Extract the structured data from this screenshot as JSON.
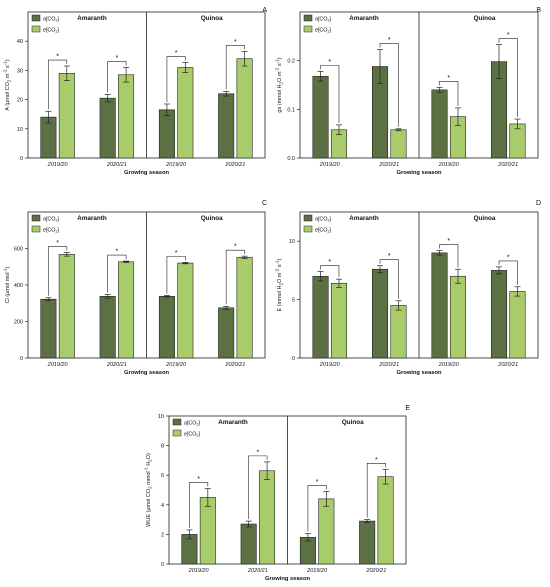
{
  "colors": {
    "ambient": "#5b7043",
    "elevated": "#a9cc6a",
    "axis": "#222222"
  },
  "legend": {
    "ambient_prefix": "a",
    "elevated_prefix": "e",
    "gas": "[CO",
    "gas_sub": "2",
    "gas_end": "]"
  },
  "xlabel": "Growing season",
  "categories": [
    "2019/20",
    "2020/21",
    "2019/20",
    "2020/21"
  ],
  "crops": [
    "Amaranth",
    "Quinoa"
  ],
  "chart_data": [
    {
      "type": "bar",
      "panel": "A",
      "ylabel_html": "A (μmol CO<tspan font-size='4.5' dy='1.5'>2</tspan><tspan dy='-1.5'> m</tspan><tspan font-size='4.5' dy='-2.5'>-2</tspan><tspan dy='2.5'> s</tspan><tspan font-size='4.5' dy='-2.5'>-1</tspan><tspan dy='2.5'>)</tspan>",
      "ylim": [
        0,
        50
      ],
      "ticks": [
        0,
        10,
        20,
        30,
        40
      ],
      "tick_labels": [
        "0",
        "10",
        "20",
        "30",
        "40"
      ],
      "series": [
        {
          "name": "a[CO2]",
          "values": [
            14,
            20.5,
            16.5,
            22
          ],
          "err": [
            2,
            1.3,
            2,
            0.8
          ]
        },
        {
          "name": "e[CO2]",
          "values": [
            29,
            28.5,
            31,
            34
          ],
          "err": [
            2.5,
            2.5,
            1.7,
            2.5
          ]
        }
      ],
      "significance": [
        "*",
        "*",
        "*",
        "*"
      ],
      "xlabel": "Growing season"
    },
    {
      "type": "bar",
      "panel": "B",
      "ylabel_html": "gs (mmol H<tspan font-size='4.5' dy='1.5'>2</tspan><tspan dy='-1.5'>O m</tspan><tspan font-size='4.5' dy='-2.5'>-2</tspan><tspan dy='2.5'> s</tspan><tspan font-size='4.5' dy='-2.5'>-1</tspan><tspan dy='2.5'>)</tspan>",
      "ylim": [
        0,
        0.3
      ],
      "ticks": [
        0,
        0.1,
        0.2
      ],
      "tick_labels": [
        "0.0",
        "0.1",
        "0.2"
      ],
      "series": [
        {
          "name": "a[CO2]",
          "values": [
            0.168,
            0.188,
            0.14,
            0.198
          ],
          "err": [
            0.01,
            0.035,
            0.005,
            0.035
          ]
        },
        {
          "name": "e[CO2]",
          "values": [
            0.058,
            0.058,
            0.085,
            0.07
          ],
          "err": [
            0.01,
            0.002,
            0.018,
            0.01
          ]
        }
      ],
      "significance": [
        "*",
        "*",
        "*",
        "*"
      ],
      "xlabel": "Growing season"
    },
    {
      "type": "bar",
      "panel": "C",
      "ylabel_html": "Ci (μmol mol<tspan font-size='4.5' dy='-2.5'>-1</tspan><tspan dy='2.5'>)</tspan>",
      "ylim": [
        0,
        800
      ],
      "ticks": [
        0,
        200,
        400,
        600
      ],
      "tick_labels": [
        "0",
        "200",
        "400",
        "600"
      ],
      "series": [
        {
          "name": "a[CO2]",
          "values": [
            322,
            338,
            338,
            275
          ],
          "err": [
            8,
            10,
            4,
            8
          ]
        },
        {
          "name": "e[CO2]",
          "values": [
            568,
            527,
            520,
            552
          ],
          "err": [
            10,
            4,
            4,
            6
          ]
        }
      ],
      "significance": [
        "*",
        "*",
        "*",
        "*"
      ],
      "xlabel": "Growing season"
    },
    {
      "type": "bar",
      "panel": "D",
      "ylabel_html": "E (mmol H<tspan font-size='4.5' dy='1.5'>2</tspan><tspan dy='-1.5'>O m</tspan><tspan font-size='4.5' dy='-2.5'>-2</tspan><tspan dy='2.5'> s</tspan><tspan font-size='4.5' dy='-2.5'>-1</tspan><tspan dy='2.5'>)</tspan>",
      "ylim": [
        0,
        12.5
      ],
      "ticks": [
        0,
        5,
        10
      ],
      "tick_labels": [
        "0",
        "5",
        "10"
      ],
      "series": [
        {
          "name": "a[CO2]",
          "values": [
            7,
            7.6,
            9,
            7.5
          ],
          "err": [
            0.4,
            0.3,
            0.2,
            0.3
          ]
        },
        {
          "name": "e[CO2]",
          "values": [
            6.4,
            4.5,
            7,
            5.7
          ],
          "err": [
            0.35,
            0.4,
            0.6,
            0.4
          ]
        }
      ],
      "significance": [
        "*",
        "*",
        "*",
        "*"
      ],
      "xlabel": "Growing season"
    },
    {
      "type": "bar",
      "panel": "E",
      "ylabel_html": "WUE (μmol CO<tspan font-size='4.5' dy='1.5'>2</tspan><tspan dy='-1.5'> mmol</tspan><tspan font-size='4.5' dy='-2.5'>-1</tspan><tspan dy='2.5'> H</tspan><tspan font-size='4.5' dy='1.5'>2</tspan><tspan dy='-1.5'>O)</tspan>",
      "ylim": [
        0,
        10
      ],
      "ticks": [
        0,
        2,
        4,
        6,
        8,
        10
      ],
      "tick_labels": [
        "0",
        "2",
        "4",
        "6",
        "8",
        "10"
      ],
      "series": [
        {
          "name": "a[CO2]",
          "values": [
            2,
            2.7,
            1.8,
            2.9
          ],
          "err": [
            0.3,
            0.2,
            0.25,
            0.1
          ]
        },
        {
          "name": "e[CO2]",
          "values": [
            4.5,
            6.3,
            4.4,
            5.9
          ],
          "err": [
            0.6,
            0.6,
            0.5,
            0.5
          ]
        }
      ],
      "significance": [
        "*",
        "*",
        "*",
        "*"
      ],
      "xlabel": "Growing season"
    }
  ]
}
